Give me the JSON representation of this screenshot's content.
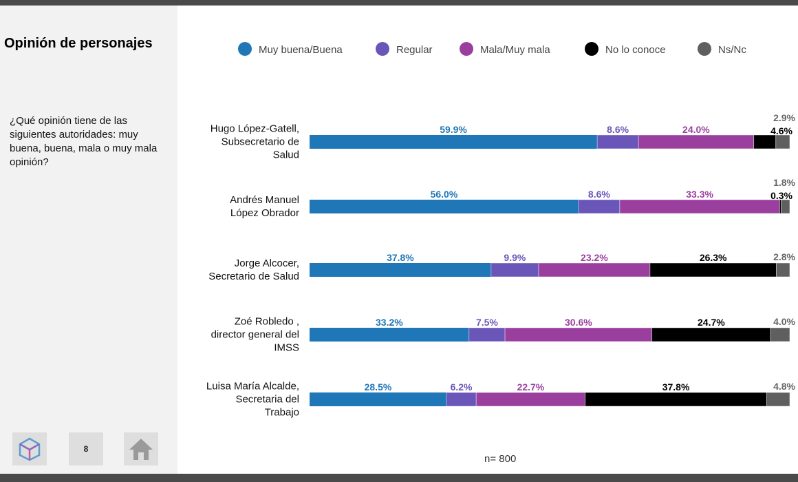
{
  "page": {
    "title": "Opinión de personajes",
    "question": "¿Qué opinión tiene de las siguientes autoridades: muy buena, buena, mala o muy mala opinión?",
    "page_number": "8",
    "sample_size": "n= 800"
  },
  "chart_data": {
    "type": "bar",
    "orientation": "horizontal",
    "stacked": true,
    "title": "Opinión de personajes",
    "legend_position": "top",
    "categories": [
      [
        "Hugo López-Gatell,",
        "Subsecretario de",
        "Salud"
      ],
      [
        "Andrés Manuel",
        "López Obrador"
      ],
      [
        "Jorge Alcocer,",
        "Secretario de Salud"
      ],
      [
        "Zoé  Robledo ,",
        "director general del",
        "IMSS"
      ],
      [
        "Luisa María Alcalde,",
        "Secretaria del",
        "Trabajo"
      ]
    ],
    "series": [
      {
        "name": "Muy buena/Buena",
        "color": "#1f77b8",
        "label_color": "#1f77b8",
        "values": [
          59.9,
          56.0,
          37.8,
          33.2,
          28.5
        ],
        "labels": [
          "59.9%",
          "56.0%",
          "37.8%",
          "33.2%",
          "28.5%"
        ]
      },
      {
        "name": "Regular",
        "color": "#6a55b8",
        "label_color": "#6a55b8",
        "values": [
          8.6,
          8.6,
          9.9,
          7.5,
          6.2
        ],
        "labels": [
          "8.6%",
          "8.6%",
          "9.9%",
          "7.5%",
          "6.2%"
        ]
      },
      {
        "name": "Mala/Muy mala",
        "color": "#9b3f9f",
        "label_color": "#9b3f9f",
        "values": [
          24.0,
          33.3,
          23.2,
          30.6,
          22.7
        ],
        "labels": [
          "24.0%",
          "33.3%",
          "23.2%",
          "30.6%",
          "22.7%"
        ]
      },
      {
        "name": "No lo conoce",
        "color": "#000000",
        "label_color": "#000000",
        "values": [
          4.6,
          0.3,
          26.3,
          24.7,
          37.8
        ],
        "labels": [
          "4.6%",
          "0.3%",
          "26.3%",
          "24.7%",
          "37.8%"
        ]
      },
      {
        "name": "Ns/Nc",
        "color": "#5f5f5f",
        "label_color": "#666666",
        "values": [
          2.9,
          1.8,
          2.8,
          4.0,
          4.8
        ],
        "labels": [
          "2.9%",
          "1.8%",
          "2.8%",
          "4.0%",
          "4.8%"
        ]
      }
    ],
    "xlim": [
      0,
      100
    ]
  }
}
